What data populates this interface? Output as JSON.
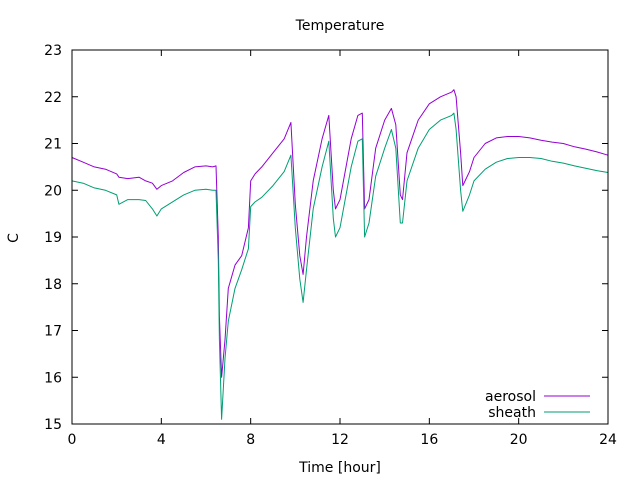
{
  "chart_data": {
    "type": "line",
    "title": "Temperature",
    "xlabel": "Time [hour]",
    "ylabel": "C",
    "xlim": [
      0,
      24
    ],
    "ylim": [
      15,
      23
    ],
    "xticks": [
      0,
      4,
      8,
      12,
      16,
      20,
      24
    ],
    "yticks": [
      15,
      16,
      17,
      18,
      19,
      20,
      21,
      22,
      23
    ],
    "grid": false,
    "legend_position": "bottom-right",
    "series": [
      {
        "name": "aerosol",
        "color": "#9400d3",
        "x": [
          0,
          0.5,
          1,
          1.5,
          2,
          2.1,
          2.5,
          3,
          3.3,
          3.6,
          3.8,
          4,
          4.5,
          5,
          5.5,
          6,
          6.3,
          6.45,
          6.55,
          6.6,
          6.7,
          6.85,
          7,
          7.3,
          7.6,
          7.9,
          8,
          8.2,
          8.5,
          9,
          9.5,
          9.8,
          10,
          10.2,
          10.35,
          10.5,
          10.8,
          11.2,
          11.5,
          11.7,
          11.8,
          12,
          12.5,
          12.8,
          13,
          13.1,
          13.3,
          13.6,
          14,
          14.3,
          14.5,
          14.7,
          14.8,
          15,
          15.5,
          16,
          16.5,
          17,
          17.1,
          17.2,
          17.4,
          17.5,
          17.8,
          18,
          18.5,
          19,
          19.5,
          20,
          20.5,
          21,
          21.5,
          22,
          22.5,
          23,
          23.5,
          24
        ],
        "values": [
          20.7,
          20.6,
          20.5,
          20.45,
          20.35,
          20.28,
          20.25,
          20.28,
          20.2,
          20.15,
          20.02,
          20.1,
          20.2,
          20.38,
          20.5,
          20.52,
          20.5,
          20.52,
          19.0,
          17.3,
          16.0,
          16.8,
          17.9,
          18.4,
          18.6,
          19.2,
          20.2,
          20.35,
          20.5,
          20.8,
          21.1,
          21.45,
          19.7,
          18.6,
          18.2,
          19.0,
          20.2,
          21.1,
          21.6,
          20.0,
          19.6,
          19.8,
          21.1,
          21.6,
          21.65,
          19.6,
          19.8,
          20.9,
          21.5,
          21.75,
          21.4,
          19.9,
          19.8,
          20.8,
          21.5,
          21.85,
          22.0,
          22.1,
          22.15,
          22.0,
          20.8,
          20.1,
          20.4,
          20.7,
          21.0,
          21.12,
          21.15,
          21.15,
          21.12,
          21.07,
          21.03,
          21.0,
          20.93,
          20.88,
          20.82,
          20.75
        ]
      },
      {
        "name": "sheath",
        "color": "#009e73",
        "x": [
          0,
          0.5,
          1,
          1.5,
          2,
          2.1,
          2.5,
          3,
          3.3,
          3.6,
          3.8,
          4,
          4.5,
          5,
          5.5,
          6,
          6.3,
          6.45,
          6.55,
          6.6,
          6.7,
          6.85,
          7,
          7.3,
          7.6,
          7.9,
          8,
          8.2,
          8.5,
          9,
          9.5,
          9.8,
          10,
          10.2,
          10.35,
          10.5,
          10.8,
          11.2,
          11.5,
          11.7,
          11.8,
          12,
          12.5,
          12.8,
          13,
          13.1,
          13.3,
          13.6,
          14,
          14.3,
          14.5,
          14.7,
          14.8,
          15,
          15.5,
          16,
          16.5,
          17,
          17.1,
          17.2,
          17.4,
          17.5,
          17.8,
          18,
          18.5,
          19,
          19.5,
          20,
          20.5,
          21,
          21.5,
          22,
          22.5,
          23,
          23.5,
          24
        ],
        "values": [
          20.2,
          20.15,
          20.05,
          20.0,
          19.9,
          19.7,
          19.8,
          19.8,
          19.78,
          19.6,
          19.45,
          19.6,
          19.75,
          19.9,
          20.0,
          20.02,
          20.0,
          20.0,
          18.5,
          16.8,
          15.1,
          16.4,
          17.2,
          17.9,
          18.3,
          18.75,
          19.65,
          19.75,
          19.85,
          20.1,
          20.4,
          20.75,
          19.2,
          18.1,
          17.6,
          18.3,
          19.6,
          20.5,
          21.05,
          19.4,
          19.0,
          19.2,
          20.5,
          21.05,
          21.1,
          19.0,
          19.3,
          20.3,
          20.9,
          21.3,
          20.9,
          19.3,
          19.3,
          20.2,
          20.9,
          21.3,
          21.5,
          21.6,
          21.65,
          21.3,
          20.0,
          19.55,
          19.9,
          20.2,
          20.45,
          20.6,
          20.68,
          20.7,
          20.7,
          20.68,
          20.62,
          20.58,
          20.52,
          20.47,
          20.42,
          20.38
        ]
      }
    ]
  }
}
